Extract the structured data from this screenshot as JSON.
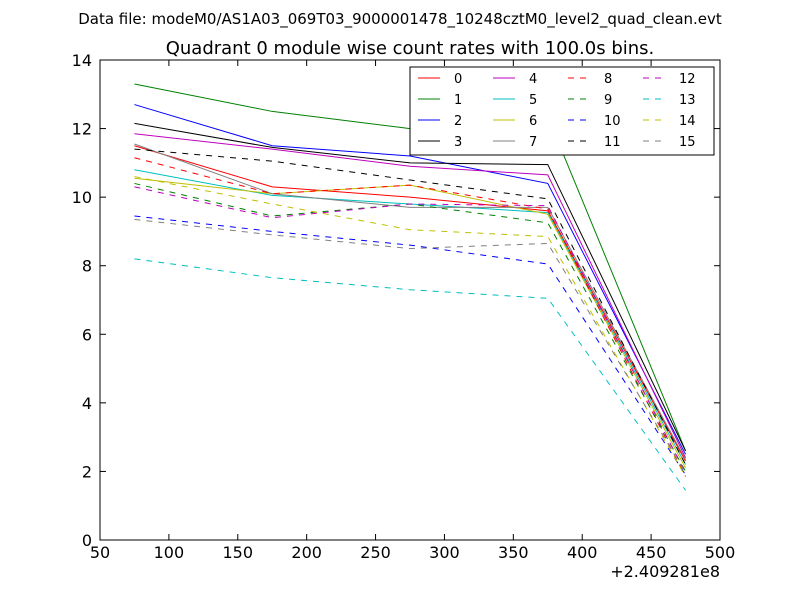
{
  "chart_data": {
    "type": "line",
    "suptitle": "Data file: modeM0/AS1A03_069T03_9000001478_10248cztM0_level2_quad_clean.evt",
    "title": "Quadrant 0 module wise count rates with 100.0s bins.",
    "xlabel": "",
    "ylabel": "",
    "x_offset_label": "+2.409281e8",
    "xlim": [
      50,
      500
    ],
    "ylim": [
      0,
      14
    ],
    "xticks": [
      "50",
      "100",
      "150",
      "200",
      "250",
      "300",
      "350",
      "400",
      "450",
      "500"
    ],
    "yticks": [
      "0",
      "2",
      "4",
      "6",
      "8",
      "10",
      "12",
      "14"
    ],
    "x": [
      75,
      175,
      275,
      375,
      475
    ],
    "legend_position": "top-right",
    "legend_columns": 4,
    "series": [
      {
        "name": "0",
        "color": "#ff0000",
        "dashed": false,
        "values": [
          11.5,
          10.3,
          10.0,
          9.6,
          2.3
        ]
      },
      {
        "name": "1",
        "color": "#008000",
        "dashed": false,
        "values": [
          13.3,
          12.5,
          12.0,
          12.35,
          2.6
        ]
      },
      {
        "name": "2",
        "color": "#0000ff",
        "dashed": false,
        "values": [
          12.7,
          11.5,
          11.2,
          10.4,
          2.5
        ]
      },
      {
        "name": "3",
        "color": "#000000",
        "dashed": false,
        "values": [
          12.15,
          11.45,
          11.0,
          10.95,
          2.6
        ]
      },
      {
        "name": "4",
        "color": "#bf00bf",
        "dashed": false,
        "values": [
          11.85,
          11.4,
          10.9,
          10.65,
          2.4
        ]
      },
      {
        "name": "5",
        "color": "#00bfbf",
        "dashed": false,
        "values": [
          10.8,
          10.05,
          9.8,
          9.55,
          2.2
        ]
      },
      {
        "name": "6",
        "color": "#bfbf00",
        "dashed": false,
        "values": [
          10.55,
          10.1,
          10.35,
          9.5,
          2.1
        ]
      },
      {
        "name": "7",
        "color": "#808080",
        "dashed": false,
        "values": [
          11.55,
          10.1,
          9.7,
          9.7,
          2.35
        ]
      },
      {
        "name": "8",
        "color": "#ff0000",
        "dashed": true,
        "values": [
          11.15,
          10.1,
          10.35,
          9.65,
          1.85
        ]
      },
      {
        "name": "9",
        "color": "#008000",
        "dashed": true,
        "values": [
          10.4,
          9.45,
          9.8,
          9.25,
          2.0
        ]
      },
      {
        "name": "10",
        "color": "#0000ff",
        "dashed": true,
        "values": [
          9.45,
          9.0,
          8.6,
          8.05,
          1.9
        ]
      },
      {
        "name": "11",
        "color": "#000000",
        "dashed": true,
        "values": [
          11.4,
          11.05,
          10.5,
          9.95,
          2.2
        ]
      },
      {
        "name": "12",
        "color": "#bf00bf",
        "dashed": true,
        "values": [
          10.3,
          9.4,
          9.8,
          9.75,
          1.95
        ]
      },
      {
        "name": "13",
        "color": "#00bfbf",
        "dashed": true,
        "values": [
          8.2,
          7.65,
          7.3,
          7.05,
          1.45
        ]
      },
      {
        "name": "14",
        "color": "#bfbf00",
        "dashed": true,
        "values": [
          10.6,
          9.8,
          9.05,
          8.85,
          1.85
        ]
      },
      {
        "name": "15",
        "color": "#808080",
        "dashed": true,
        "values": [
          9.35,
          8.9,
          8.5,
          8.65,
          1.95
        ]
      }
    ]
  }
}
